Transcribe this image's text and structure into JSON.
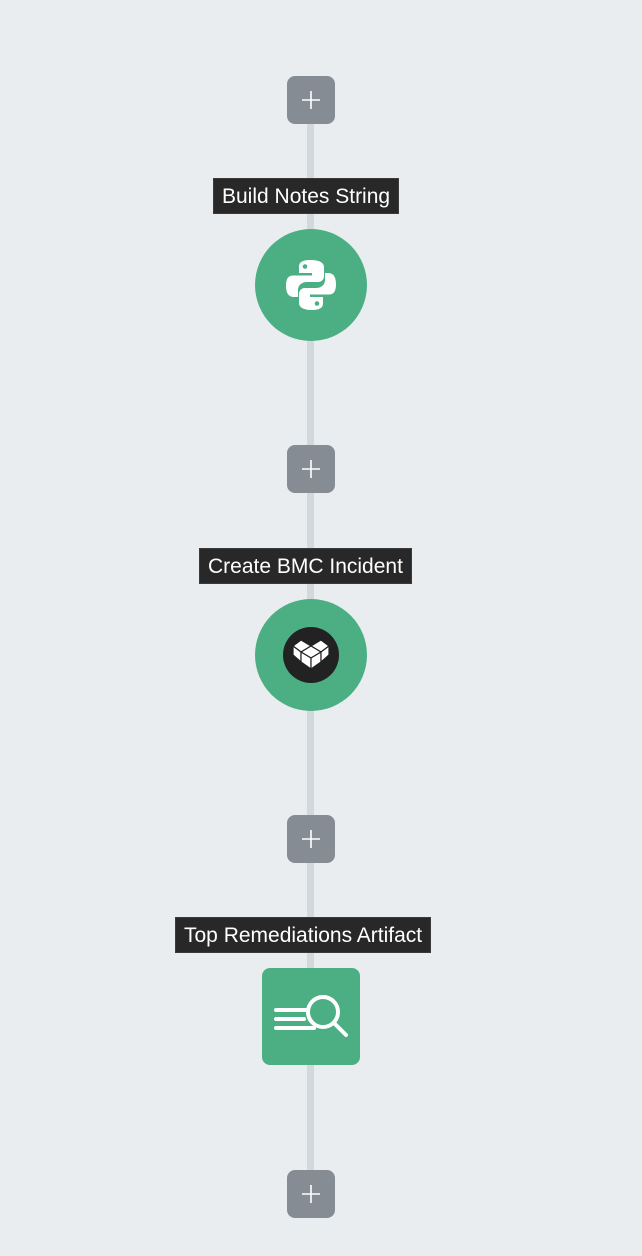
{
  "workflow": {
    "nodes": [
      {
        "label": "Build Notes String",
        "icon": "python-icon",
        "shape": "circle"
      },
      {
        "label": "Create BMC Incident",
        "icon": "bmc-icon",
        "shape": "circle"
      },
      {
        "label": "Top Remediations Artifact",
        "icon": "artifact-search-icon",
        "shape": "square"
      }
    ],
    "add_button_icon": "plus-icon"
  },
  "colors": {
    "background": "#e9edf0",
    "node_fill": "#4caf84",
    "add_button": "#868c94",
    "connector": "#d3d8dc",
    "label_bg": "#282828",
    "label_text": "#ffffff"
  }
}
